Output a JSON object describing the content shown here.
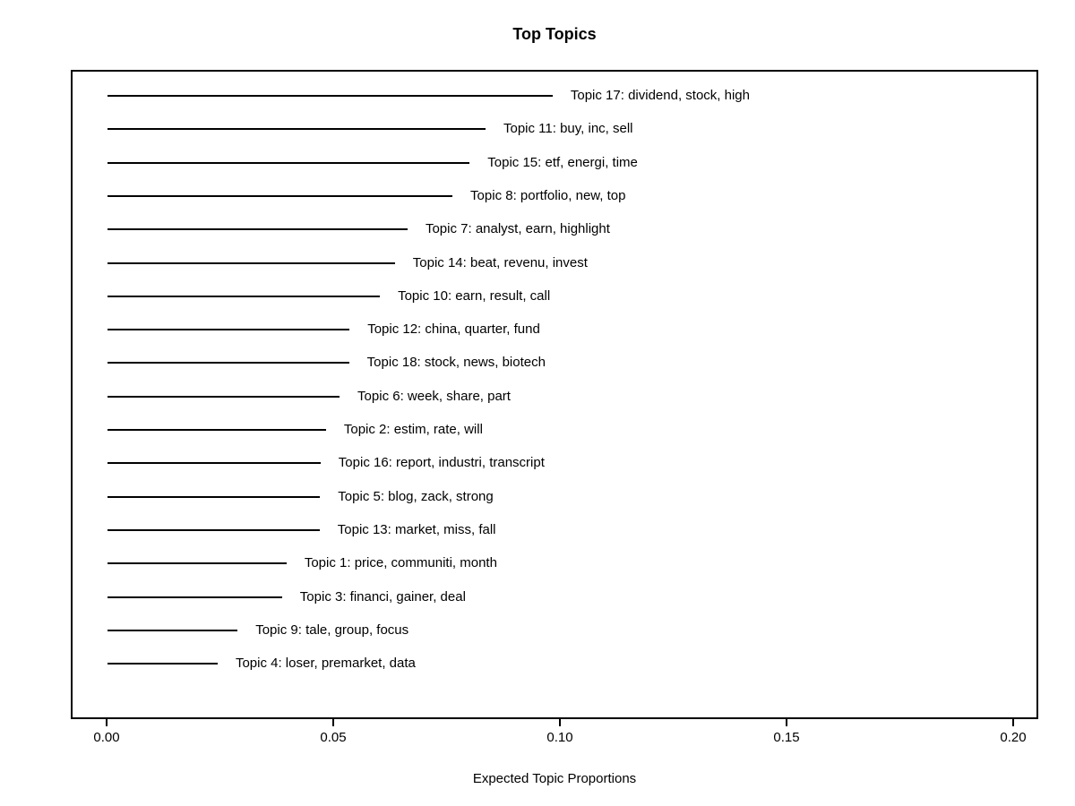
{
  "page": {
    "background_color": "#ffffff",
    "text_color": "#000000",
    "line_color": "#000000"
  },
  "chart_data": {
    "type": "bar",
    "orientation": "horizontal",
    "title": "Top Topics",
    "xlabel": "Expected Topic Proportions",
    "ylabel": "",
    "xlim": [
      0,
      0.2
    ],
    "grid": false,
    "legend": "none",
    "xticks": [
      {
        "value": 0.0,
        "label": "0.00"
      },
      {
        "value": 0.05,
        "label": "0.05"
      },
      {
        "value": 0.1,
        "label": "0.10"
      },
      {
        "value": 0.15,
        "label": "0.15"
      },
      {
        "value": 0.2,
        "label": "0.20"
      }
    ],
    "topics": [
      {
        "label": "Topic 17: dividend, stock, high",
        "value": 0.098
      },
      {
        "label": "Topic 11: buy, inc, sell",
        "value": 0.0832
      },
      {
        "label": "Topic 15: etf, energi, time",
        "value": 0.0797
      },
      {
        "label": "Topic 8: portfolio, new, top",
        "value": 0.0759
      },
      {
        "label": "Topic 7: analyst, earn, highlight",
        "value": 0.066
      },
      {
        "label": "Topic 14: beat, revenu, invest",
        "value": 0.0632
      },
      {
        "label": "Topic 10: earn, result, call",
        "value": 0.0599
      },
      {
        "label": "Topic 12: china, quarter, fund",
        "value": 0.0532
      },
      {
        "label": "Topic 18: stock, news, biotech",
        "value": 0.0531
      },
      {
        "label": "Topic 6: week, share, part",
        "value": 0.051
      },
      {
        "label": "Topic 2: estim, rate, will",
        "value": 0.048
      },
      {
        "label": "Topic 16: report, industri, transcript",
        "value": 0.0468
      },
      {
        "label": "Topic 5: blog, zack, strong",
        "value": 0.0467
      },
      {
        "label": "Topic 13: market, miss, fall",
        "value": 0.0466
      },
      {
        "label": "Topic 1: price, communiti, month",
        "value": 0.0393
      },
      {
        "label": "Topic 3: financi, gainer, deal",
        "value": 0.0383
      },
      {
        "label": "Topic 9: tale, group, focus",
        "value": 0.0285
      },
      {
        "label": "Topic 4: loser, premarket, data",
        "value": 0.0241
      }
    ]
  }
}
